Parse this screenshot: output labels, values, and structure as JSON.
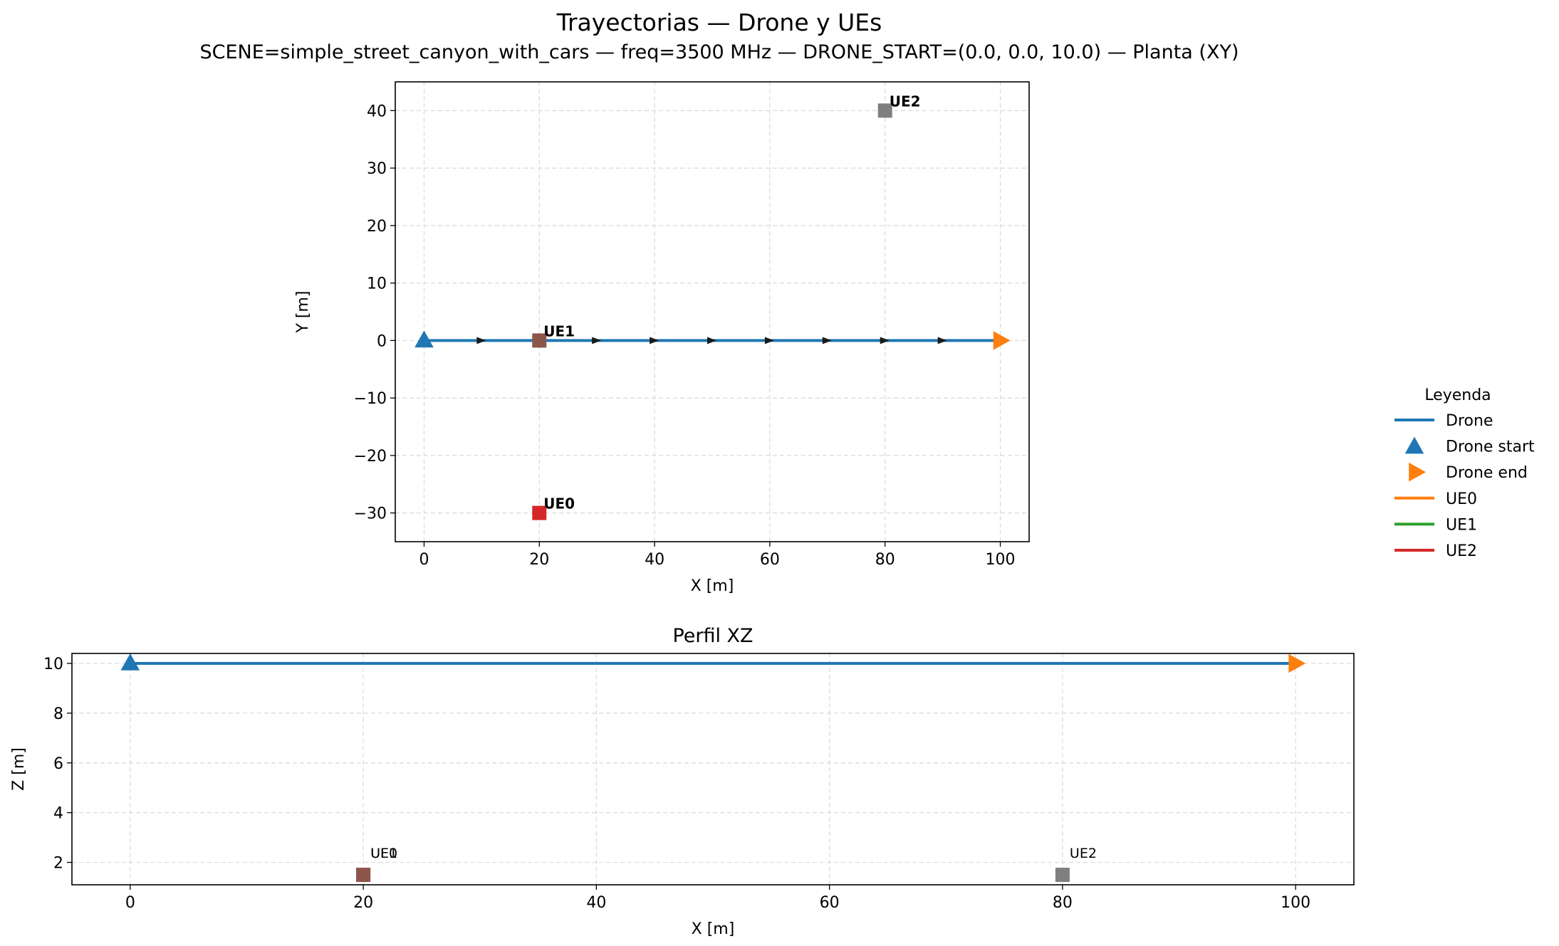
{
  "figure": {
    "title": "Trayectorias — Drone y UEs",
    "subtitle": "SCENE=simple_street_canyon_with_cars — freq=3500 MHz — DRONE_START=(0.0, 0.0, 10.0) — Planta (XY)"
  },
  "colors": {
    "drone": "#1f77b4",
    "drone_end": "#ff7f0e",
    "ue0": "#d62728",
    "ue1": "#8c564b",
    "ue2": "#7f7f7f",
    "legend_ue0": "#ff7f0e",
    "legend_ue1": "#2ca02c",
    "legend_ue2": "#d62728",
    "grid": "#d9d9d9",
    "arrow": "#1a1a1a"
  },
  "legend": {
    "title": "Leyenda",
    "entries": [
      {
        "label": "Drone",
        "type": "line",
        "color": "#1f77b4"
      },
      {
        "label": "Drone start",
        "type": "triangle-up",
        "color": "#1f77b4"
      },
      {
        "label": "Drone end",
        "type": "triangle-right",
        "color": "#ff7f0e"
      },
      {
        "label": "UE0",
        "type": "line",
        "color": "#ff7f0e"
      },
      {
        "label": "UE1",
        "type": "line",
        "color": "#2ca02c"
      },
      {
        "label": "UE2",
        "type": "line",
        "color": "#d62728"
      }
    ]
  },
  "chart_data": [
    {
      "type": "line",
      "title": "",
      "xlabel": "X [m]",
      "ylabel": "Y [m]",
      "xlim": [
        -5,
        105
      ],
      "ylim": [
        -35,
        45
      ],
      "xticks": [
        0,
        20,
        40,
        60,
        80,
        100
      ],
      "yticks": [
        -30,
        -20,
        -10,
        0,
        10,
        20,
        30,
        40
      ],
      "grid": true,
      "series": [
        {
          "name": "Drone",
          "x": [
            0,
            100
          ],
          "y": [
            0,
            0
          ],
          "color": "#1f77b4"
        }
      ],
      "direction_arrows_x": [
        10,
        20,
        30,
        40,
        50,
        60,
        70,
        80,
        90
      ],
      "start": {
        "x": 0,
        "y": 0
      },
      "end": {
        "x": 100,
        "y": 0
      },
      "ues": [
        {
          "label": "UE0",
          "x": 20,
          "y": -30,
          "color": "#d62728"
        },
        {
          "label": "UE1",
          "x": 20,
          "y": 0,
          "color": "#8c564b"
        },
        {
          "label": "UE2",
          "x": 80,
          "y": 40,
          "color": "#7f7f7f"
        }
      ]
    },
    {
      "type": "line",
      "title": "Perfil XZ",
      "xlabel": "X [m]",
      "ylabel": "Z [m]",
      "xlim": [
        -5,
        105
      ],
      "ylim": [
        1.1,
        10.4
      ],
      "xticks": [
        0,
        20,
        40,
        60,
        80,
        100
      ],
      "yticks": [
        2,
        4,
        6,
        8,
        10
      ],
      "grid": true,
      "series": [
        {
          "name": "Drone",
          "x": [
            0,
            100
          ],
          "y": [
            10,
            10
          ],
          "color": "#1f77b4"
        }
      ],
      "start": {
        "x": 0,
        "y": 10
      },
      "end": {
        "x": 100,
        "y": 10
      },
      "ues": [
        {
          "label": "UE0",
          "x": 20,
          "y": 1.5,
          "color": "#d62728"
        },
        {
          "label": "UE1",
          "x": 20,
          "y": 1.5,
          "color": "#8c564b"
        },
        {
          "label": "UE2",
          "x": 80,
          "y": 1.5,
          "color": "#7f7f7f"
        }
      ]
    }
  ]
}
